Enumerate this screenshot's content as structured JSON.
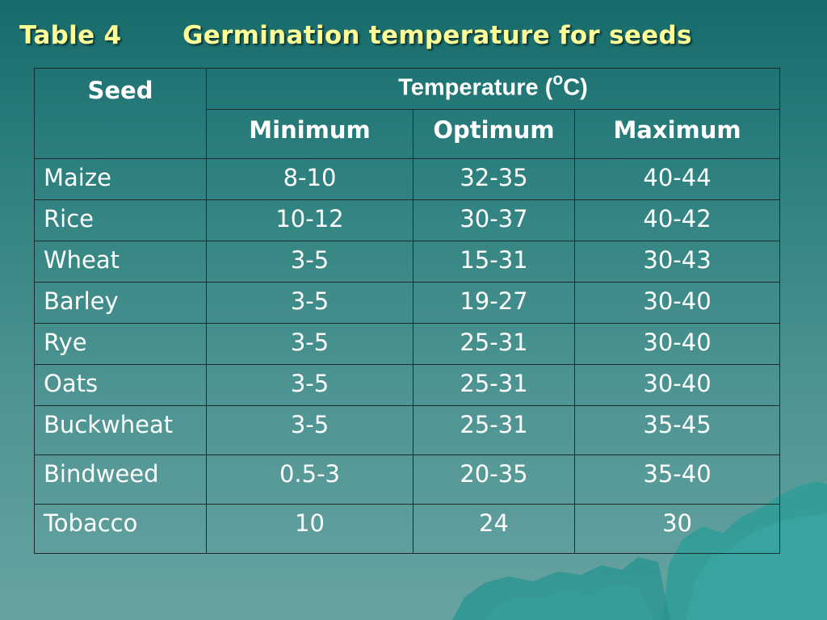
{
  "title": {
    "label": "Table 4",
    "text": "Germination temperature for seeds"
  },
  "table": {
    "headers": {
      "seed": "Seed",
      "temperature_prefix": "Temperature (",
      "temperature_degree": "o",
      "temperature_suffix": "C)",
      "minimum": "Minimum",
      "optimum": "Optimum",
      "maximum": "Maximum"
    },
    "rows": [
      {
        "seed": "Maize",
        "min": "8-10",
        "opt": "32-35",
        "max": "40-44"
      },
      {
        "seed": "Rice",
        "min": "10-12",
        "opt": "30-37",
        "max": "40-42"
      },
      {
        "seed": "Wheat",
        "min": "3-5",
        "opt": "15-31",
        "max": "30-43"
      },
      {
        "seed": "Barley",
        "min": "3-5",
        "opt": "19-27",
        "max": "30-40"
      },
      {
        "seed": "Rye",
        "min": "3-5",
        "opt": "25-31",
        "max": "30-40"
      },
      {
        "seed": "Oats",
        "min": "3-5",
        "opt": "25-31",
        "max": "30-40"
      },
      {
        "seed": "Buckwheat",
        "min": "3-5",
        "opt": "25-31",
        "max": "35-45"
      },
      {
        "seed": "Bindweed",
        "min": "0.5-3",
        "opt": "20-35",
        "max": "35-40"
      },
      {
        "seed": "Tobacco",
        "min": "10",
        "opt": "24",
        "max": "30"
      }
    ]
  },
  "colors": {
    "title_text": "#ffff99",
    "cell_text": "#ffffff",
    "grid_lines": "#1c2b2b",
    "iceberg": "#2a9a96"
  }
}
